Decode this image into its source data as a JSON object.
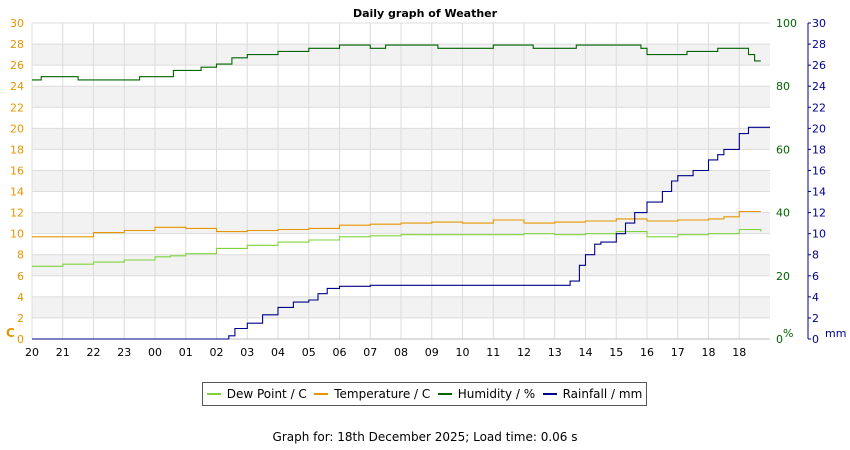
{
  "chart_data": {
    "type": "line",
    "title": "Daily graph of Weather",
    "x_ticks": [
      "20",
      "21",
      "22",
      "23",
      "00",
      "01",
      "02",
      "03",
      "04",
      "05",
      "06",
      "07",
      "08",
      "09",
      "10",
      "11",
      "12",
      "13",
      "14",
      "15",
      "16",
      "17",
      "18",
      "18"
    ],
    "x_range_hours": [
      0,
      24
    ],
    "axes": {
      "left": {
        "label": "C",
        "range": [
          0,
          30
        ],
        "ticks": [
          0,
          2,
          4,
          6,
          8,
          10,
          12,
          14,
          16,
          18,
          20,
          22,
          24,
          26,
          28,
          30
        ],
        "color": "#e69500"
      },
      "right_humidity": {
        "label": "%",
        "range": [
          0,
          100
        ],
        "ticks": [
          0,
          20,
          40,
          60,
          80,
          100
        ],
        "color": "#006400"
      },
      "right_rainfall": {
        "label": "mm",
        "range": [
          0,
          30
        ],
        "ticks": [
          0,
          2,
          4,
          6,
          8,
          10,
          12,
          14,
          16,
          18,
          20,
          22,
          24,
          26,
          28,
          30
        ],
        "color": "#00008b"
      }
    },
    "grid": true,
    "legend_position": "bottom",
    "series": [
      {
        "name": "Dew Point / C",
        "axis": "left",
        "color": "#7fd33a",
        "points": [
          [
            0,
            6.9
          ],
          [
            1,
            7.1
          ],
          [
            2,
            7.3
          ],
          [
            3,
            7.5
          ],
          [
            4,
            7.8
          ],
          [
            4.5,
            7.9
          ],
          [
            5,
            8.1
          ],
          [
            6,
            8.6
          ],
          [
            7,
            8.9
          ],
          [
            8,
            9.2
          ],
          [
            9,
            9.4
          ],
          [
            10,
            9.7
          ],
          [
            11,
            9.8
          ],
          [
            12,
            9.9
          ],
          [
            13,
            9.9
          ],
          [
            14,
            9.9
          ],
          [
            15,
            9.9
          ],
          [
            16,
            10.0
          ],
          [
            17,
            9.9
          ],
          [
            18,
            10.0
          ],
          [
            19,
            10.2
          ],
          [
            20,
            9.7
          ],
          [
            20.5,
            9.7
          ],
          [
            21,
            9.9
          ],
          [
            22,
            10.0
          ],
          [
            23,
            10.4
          ],
          [
            23.7,
            10.2
          ]
        ]
      },
      {
        "name": "Temperature / C",
        "axis": "left",
        "color": "#e69500",
        "points": [
          [
            0,
            9.7
          ],
          [
            1,
            9.7
          ],
          [
            2,
            10.1
          ],
          [
            3,
            10.3
          ],
          [
            4,
            10.6
          ],
          [
            5,
            10.5
          ],
          [
            6,
            10.2
          ],
          [
            7,
            10.3
          ],
          [
            8,
            10.4
          ],
          [
            9,
            10.5
          ],
          [
            10,
            10.8
          ],
          [
            11,
            10.9
          ],
          [
            12,
            11.0
          ],
          [
            13,
            11.1
          ],
          [
            14,
            11.0
          ],
          [
            15,
            11.3
          ],
          [
            16,
            11.0
          ],
          [
            17,
            11.1
          ],
          [
            18,
            11.2
          ],
          [
            19,
            11.4
          ],
          [
            20,
            11.2
          ],
          [
            21,
            11.3
          ],
          [
            22,
            11.4
          ],
          [
            22.5,
            11.6
          ],
          [
            23,
            12.1
          ],
          [
            23.7,
            12.1
          ]
        ]
      },
      {
        "name": "Humidity / %",
        "axis": "right_humidity",
        "color": "#006400",
        "points": [
          [
            0,
            82
          ],
          [
            0.3,
            83
          ],
          [
            1,
            83
          ],
          [
            1.5,
            82
          ],
          [
            3,
            82
          ],
          [
            3.5,
            83
          ],
          [
            4.5,
            83
          ],
          [
            4.6,
            85
          ],
          [
            5,
            85
          ],
          [
            5.5,
            86
          ],
          [
            6,
            87
          ],
          [
            6.5,
            89
          ],
          [
            7,
            90
          ],
          [
            8,
            91
          ],
          [
            9,
            92
          ],
          [
            10,
            93
          ],
          [
            10.5,
            93
          ],
          [
            11,
            92
          ],
          [
            11.5,
            93
          ],
          [
            12,
            93
          ],
          [
            13,
            93
          ],
          [
            13.2,
            92
          ],
          [
            14,
            92
          ],
          [
            15,
            93
          ],
          [
            16,
            93
          ],
          [
            16.3,
            92
          ],
          [
            17.5,
            92
          ],
          [
            17.7,
            93
          ],
          [
            18,
            93
          ],
          [
            19,
            93
          ],
          [
            19.5,
            93
          ],
          [
            19.8,
            92
          ],
          [
            20,
            90
          ],
          [
            21,
            90
          ],
          [
            21.3,
            91
          ],
          [
            22,
            91
          ],
          [
            22.3,
            92
          ],
          [
            23,
            92
          ],
          [
            23.3,
            90
          ],
          [
            23.5,
            88
          ],
          [
            23.7,
            88
          ]
        ]
      },
      {
        "name": "Rainfall / mm",
        "axis": "right_rainfall",
        "color": "#00008b",
        "points": [
          [
            0,
            0
          ],
          [
            6,
            0
          ],
          [
            6.4,
            0.3
          ],
          [
            6.6,
            1
          ],
          [
            7,
            1.5
          ],
          [
            7.5,
            2.3
          ],
          [
            8,
            3
          ],
          [
            8.5,
            3.5
          ],
          [
            9,
            3.7
          ],
          [
            9.3,
            4.3
          ],
          [
            9.6,
            4.8
          ],
          [
            10,
            5
          ],
          [
            11,
            5.1
          ],
          [
            11.3,
            5.1
          ],
          [
            16,
            5.1
          ],
          [
            17,
            5.1
          ],
          [
            17.5,
            5.5
          ],
          [
            17.8,
            7
          ],
          [
            18,
            8
          ],
          [
            18.3,
            9
          ],
          [
            18.5,
            9.2
          ],
          [
            19,
            10
          ],
          [
            19.3,
            11
          ],
          [
            19.6,
            12
          ],
          [
            20,
            13
          ],
          [
            20.5,
            14
          ],
          [
            20.8,
            15
          ],
          [
            21,
            15.5
          ],
          [
            21.5,
            16
          ],
          [
            22,
            17
          ],
          [
            22.3,
            17.5
          ],
          [
            22.5,
            18
          ],
          [
            23,
            19.5
          ],
          [
            23.3,
            20.1
          ],
          [
            24,
            20.1
          ]
        ]
      }
    ]
  },
  "footer": {
    "text": "Graph for: 18th December 2025; Load time: 0.06 s"
  }
}
